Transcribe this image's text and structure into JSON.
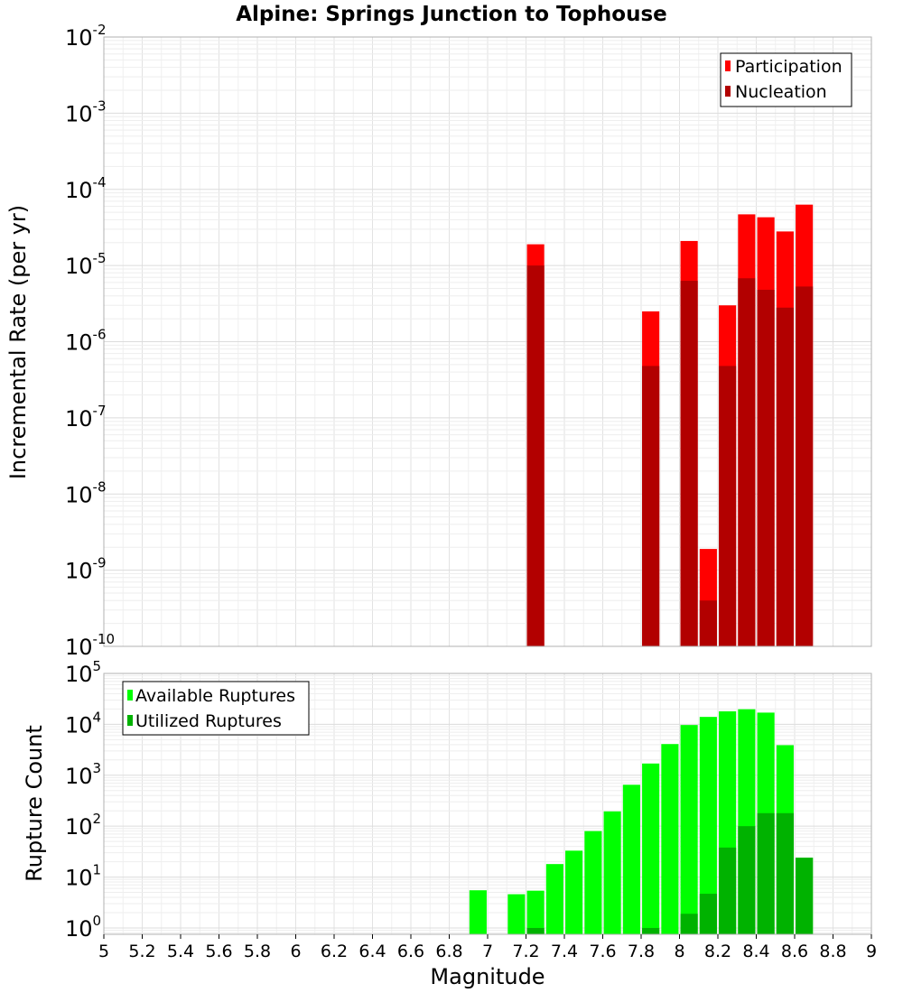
{
  "title": "Alpine: Springs Junction to Tophouse",
  "chart_data": [
    {
      "id": "rates",
      "type": "bar",
      "ylabel": "Incremental Rate (per yr)",
      "yscale": "log",
      "ylim": [
        1e-10,
        0.01
      ],
      "xlim": [
        5,
        9
      ],
      "grid": true,
      "legend_position": "top-right",
      "series": [
        {
          "name": "Participation",
          "color": "#ff0000",
          "x": [
            7.25,
            7.85,
            8.05,
            8.15,
            8.25,
            8.35,
            8.45,
            8.55,
            8.65
          ],
          "values": [
            1.9e-05,
            2.5e-06,
            2.1e-05,
            1.9e-09,
            3e-06,
            4.7e-05,
            4.3e-05,
            2.8e-05,
            6.3e-05
          ]
        },
        {
          "name": "Nucleation",
          "color": "#b20000",
          "x": [
            7.25,
            7.85,
            8.05,
            8.15,
            8.25,
            8.35,
            8.45,
            8.55,
            8.65
          ],
          "values": [
            1e-05,
            4.8e-07,
            6.3e-06,
            4e-10,
            4.8e-07,
            6.8e-06,
            4.8e-06,
            2.8e-06,
            5.3e-06
          ]
        }
      ]
    },
    {
      "id": "counts",
      "type": "bar",
      "xlabel": "Magnitude",
      "ylabel": "Rupture Count",
      "yscale": "log",
      "ylim": [
        0.75,
        100000.0
      ],
      "xlim": [
        5,
        9
      ],
      "grid": true,
      "legend_position": "top-left",
      "series": [
        {
          "name": "Available Ruptures",
          "color": "#00ff00",
          "x": [
            6.95,
            7.15,
            7.25,
            7.35,
            7.45,
            7.55,
            7.65,
            7.75,
            7.85,
            7.95,
            8.05,
            8.15,
            8.25,
            8.35,
            8.45,
            8.55,
            8.65
          ],
          "values": [
            5.5,
            4.6,
            5.4,
            18,
            33,
            80,
            195,
            650,
            1700,
            4100,
            9700,
            14000,
            18000,
            19800,
            17000,
            3900,
            24
          ]
        },
        {
          "name": "Utilized Ruptures",
          "color": "#00b200",
          "x": [
            7.25,
            7.85,
            8.05,
            8.15,
            8.25,
            8.35,
            8.45,
            8.55,
            8.65
          ],
          "values": [
            1,
            1,
            1.9,
            4.7,
            38,
            100,
            180,
            180,
            24
          ]
        }
      ]
    }
  ],
  "x_ticks": [
    "5",
    "5.2",
    "5.4",
    "5.6",
    "5.8",
    "6",
    "6.2",
    "6.4",
    "6.6",
    "6.8",
    "7",
    "7.2",
    "7.4",
    "7.6",
    "7.8",
    "8",
    "8.2",
    "8.4",
    "8.6",
    "8.8",
    "9"
  ],
  "rates_y_ticks": [
    {
      "base": "10",
      "exp": "-10",
      "value": 1e-10
    },
    {
      "base": "10",
      "exp": "-9",
      "value": 1e-09
    },
    {
      "base": "10",
      "exp": "-8",
      "value": 1e-08
    },
    {
      "base": "10",
      "exp": "-7",
      "value": 1e-07
    },
    {
      "base": "10",
      "exp": "-6",
      "value": 1e-06
    },
    {
      "base": "10",
      "exp": "-5",
      "value": 1e-05
    },
    {
      "base": "10",
      "exp": "-4",
      "value": 0.0001
    },
    {
      "base": "10",
      "exp": "-3",
      "value": 0.001
    },
    {
      "base": "10",
      "exp": "-2",
      "value": 0.01
    }
  ],
  "counts_y_ticks": [
    {
      "base": "10",
      "exp": "0",
      "value": 1
    },
    {
      "base": "10",
      "exp": "1",
      "value": 10
    },
    {
      "base": "10",
      "exp": "2",
      "value": 100
    },
    {
      "base": "10",
      "exp": "3",
      "value": 1000
    },
    {
      "base": "10",
      "exp": "4",
      "value": 10000
    },
    {
      "base": "10",
      "exp": "5",
      "value": 100000
    }
  ]
}
